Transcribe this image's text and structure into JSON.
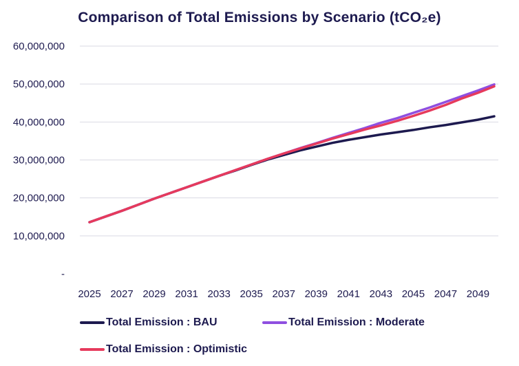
{
  "chart_data": {
    "type": "line",
    "title": "Comparison of Total Emissions by Scenario (tCO₂e)",
    "xlabel": "",
    "ylabel": "",
    "x": [
      2025,
      2026,
      2027,
      2028,
      2029,
      2030,
      2031,
      2032,
      2033,
      2034,
      2035,
      2036,
      2037,
      2038,
      2039,
      2040,
      2041,
      2042,
      2043,
      2044,
      2045,
      2046,
      2047,
      2048,
      2049,
      2050
    ],
    "x_tick_labels": [
      "2025",
      "2027",
      "2029",
      "2031",
      "2033",
      "2035",
      "2037",
      "2039",
      "2041",
      "2043",
      "2045",
      "2047",
      "2049"
    ],
    "ylim": [
      0,
      60000000
    ],
    "y_tick_values": [
      0,
      10000000,
      20000000,
      30000000,
      40000000,
      50000000,
      60000000
    ],
    "y_tick_labels": [
      "-",
      "10,000,000",
      "20,000,000",
      "30,000,000",
      "40,000,000",
      "50,000,000",
      "60,000,000"
    ],
    "grid": true,
    "legend_position": "bottom",
    "series": [
      {
        "name": "Total Emission : BAU",
        "color": "#1d1a4f",
        "values": [
          13600000,
          15100000,
          16600000,
          18200000,
          19800000,
          21300000,
          22800000,
          24300000,
          25800000,
          27200000,
          28700000,
          30100000,
          31300000,
          32500000,
          33500000,
          34500000,
          35300000,
          36000000,
          36700000,
          37300000,
          37900000,
          38600000,
          39200000,
          39900000,
          40600000,
          41500000
        ]
      },
      {
        "name": "Total Emission : Moderate",
        "color": "#8f4fe0",
        "values": [
          13600000,
          15100000,
          16600000,
          18200000,
          19800000,
          21300000,
          22800000,
          24300000,
          25800000,
          27300000,
          28800000,
          30300000,
          31700000,
          33100000,
          34400000,
          35800000,
          37100000,
          38400000,
          39800000,
          41000000,
          42400000,
          43800000,
          45300000,
          46800000,
          48300000,
          49900000
        ]
      },
      {
        "name": "Total Emission : Optimistic",
        "color": "#e63a5c",
        "values": [
          13600000,
          15100000,
          16600000,
          18200000,
          19800000,
          21300000,
          22800000,
          24300000,
          25800000,
          27300000,
          28800000,
          30300000,
          31700000,
          33000000,
          34300000,
          35600000,
          36800000,
          38000000,
          39100000,
          40300000,
          41600000,
          43000000,
          44500000,
          46200000,
          47700000,
          49400000
        ]
      }
    ]
  }
}
